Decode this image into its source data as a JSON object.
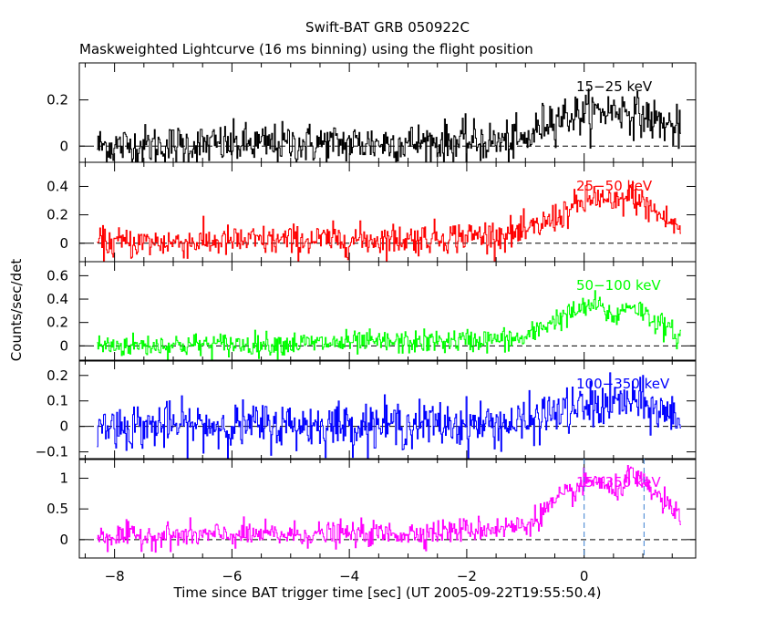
{
  "chart_data": {
    "type": "line",
    "title": "Swift-BAT GRB 050922C",
    "subtitle": "Maskweighted Lightcurve (16 ms binning) using the flight position",
    "xlabel": "Time since BAT trigger time [sec] (UT 2005-09-22T19:55:50.4)",
    "ylabel": "Counts/sec/det",
    "xlim": [
      -8.6,
      1.9
    ],
    "x_ticks": [
      -8,
      -6,
      -4,
      -2,
      0
    ],
    "x_tick_labels": [
      "−8",
      "−6",
      "−4",
      "−2",
      "0"
    ],
    "x_range_data": [
      -8.3,
      1.65
    ],
    "bin_sec": 0.016,
    "markers": {
      "t_start": 0.0,
      "t_end": 1.02,
      "color": "#3a7fd0"
    },
    "panels": [
      {
        "name": "15-25 keV",
        "label": "15−25 keV",
        "color": "#000000",
        "ylim": [
          -0.07,
          0.36
        ],
        "y_ticks": [
          0,
          0.2
        ],
        "y_tick_labels": [
          "0",
          "0.2"
        ],
        "noise": 0.045,
        "profile": [
          [
            -8.3,
            0.0
          ],
          [
            -1.0,
            0.02
          ],
          [
            -0.6,
            0.12
          ],
          [
            0.0,
            0.14
          ],
          [
            0.6,
            0.16
          ],
          [
            1.0,
            0.13
          ],
          [
            1.65,
            0.07
          ]
        ]
      },
      {
        "name": "25-50 keV",
        "label": "25−50 keV",
        "color": "#ff0000",
        "ylim": [
          -0.13,
          0.57
        ],
        "y_ticks": [
          0,
          0.2,
          0.4
        ],
        "y_tick_labels": [
          "0",
          "0.2",
          "0.4"
        ],
        "noise": 0.055,
        "profile": [
          [
            -8.3,
            0.0
          ],
          [
            -3.0,
            0.03
          ],
          [
            -1.0,
            0.07
          ],
          [
            -0.4,
            0.2
          ],
          [
            0.2,
            0.33
          ],
          [
            0.5,
            0.26
          ],
          [
            0.8,
            0.34
          ],
          [
            1.2,
            0.22
          ],
          [
            1.65,
            0.1
          ]
        ]
      },
      {
        "name": "50-100 keV",
        "label": "50−100 keV",
        "color": "#00ff00",
        "ylim": [
          -0.13,
          0.72
        ],
        "y_ticks": [
          0,
          0.2,
          0.4,
          0.6
        ],
        "y_tick_labels": [
          "0",
          "0.2",
          "0.4",
          "0.6"
        ],
        "noise": 0.05,
        "profile": [
          [
            -8.3,
            0.0
          ],
          [
            -3.0,
            0.03
          ],
          [
            -1.0,
            0.06
          ],
          [
            -0.6,
            0.2
          ],
          [
            0.2,
            0.36
          ],
          [
            0.5,
            0.24
          ],
          [
            0.8,
            0.36
          ],
          [
            1.2,
            0.22
          ],
          [
            1.65,
            0.06
          ]
        ]
      },
      {
        "name": "100-350 keV",
        "label": "100−350 keV",
        "color": "#0000ff",
        "ylim": [
          -0.13,
          0.26
        ],
        "y_ticks": [
          -0.1,
          0,
          0.1,
          0.2
        ],
        "y_tick_labels": [
          "−0.1",
          "0",
          "0.1",
          "0.2"
        ],
        "noise": 0.045,
        "profile": [
          [
            -8.3,
            0.0
          ],
          [
            -1.0,
            0.01
          ],
          [
            -0.6,
            0.05
          ],
          [
            0.2,
            0.08
          ],
          [
            0.8,
            0.1
          ],
          [
            1.65,
            0.03
          ]
        ]
      },
      {
        "name": "15-350 keV",
        "label": "15−350 keV",
        "color": "#ff00ff",
        "ylim": [
          -0.3,
          1.32
        ],
        "y_ticks": [
          0,
          0.5,
          1
        ],
        "y_tick_labels": [
          "0",
          "0.5",
          "1"
        ],
        "noise": 0.1,
        "profile": [
          [
            -8.3,
            0.05
          ],
          [
            -3.0,
            0.1
          ],
          [
            -1.0,
            0.22
          ],
          [
            -0.5,
            0.6
          ],
          [
            0.2,
            1.0
          ],
          [
            0.5,
            0.75
          ],
          [
            0.8,
            1.05
          ],
          [
            1.2,
            0.75
          ],
          [
            1.65,
            0.35
          ]
        ]
      }
    ]
  }
}
